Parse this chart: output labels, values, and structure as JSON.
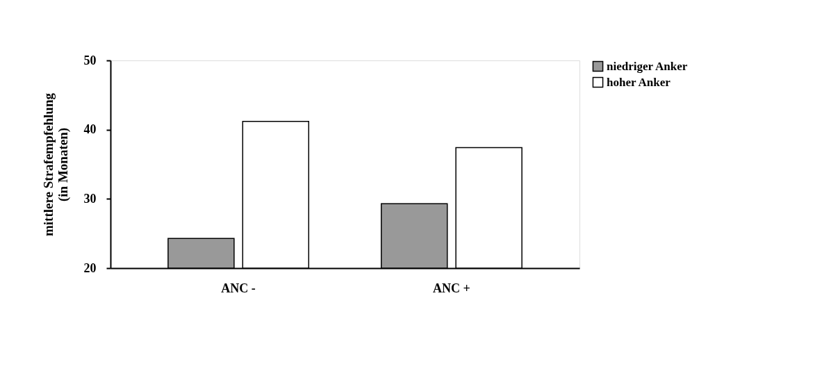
{
  "chart_data": {
    "type": "bar",
    "ylabel": "mittlere Strafempfehlung\n(in Monaten)",
    "categories": [
      "ANC -",
      "ANC +"
    ],
    "series": [
      {
        "name": "niedriger Anker",
        "color": "#999999",
        "values": [
          24.3,
          29.3
        ]
      },
      {
        "name": "hoher Anker",
        "color": "#ffffff",
        "values": [
          41.2,
          37.4
        ]
      }
    ],
    "ylim": [
      20,
      50
    ],
    "yticks": [
      20,
      30,
      40,
      50
    ],
    "grid": false,
    "legend": "top right"
  }
}
